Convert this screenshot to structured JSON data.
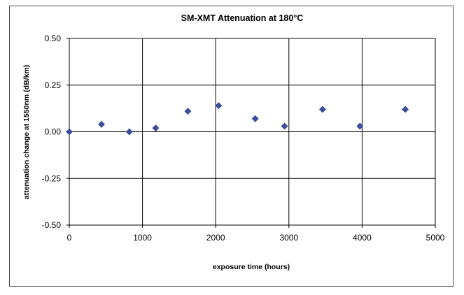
{
  "chart_data": {
    "type": "scatter",
    "title": "SM-XMT Attenuation at 180°C",
    "xlabel": "exposure time (hours)",
    "ylabel": "attenuation change at 1550nm (dB/km)",
    "xlim": [
      0,
      5000
    ],
    "ylim": [
      -0.5,
      0.5
    ],
    "x_ticks": [
      "0",
      "1000",
      "2000",
      "3000",
      "4000",
      "5000"
    ],
    "y_ticks": [
      "0.50",
      "0.25",
      "0.00",
      "-0.25",
      "-0.50"
    ],
    "grid": true,
    "legend": "none",
    "marker": "diamond",
    "color": "#3a4f9e",
    "series": [
      {
        "points": [
          {
            "x": 0,
            "y": 0.0
          },
          {
            "x": 440,
            "y": 0.04
          },
          {
            "x": 820,
            "y": 0.0
          },
          {
            "x": 1180,
            "y": 0.02
          },
          {
            "x": 1620,
            "y": 0.11
          },
          {
            "x": 2040,
            "y": 0.14
          },
          {
            "x": 2540,
            "y": 0.07
          },
          {
            "x": 2940,
            "y": 0.03
          },
          {
            "x": 3460,
            "y": 0.12
          },
          {
            "x": 3970,
            "y": 0.03
          },
          {
            "x": 4590,
            "y": 0.12
          }
        ]
      }
    ]
  }
}
